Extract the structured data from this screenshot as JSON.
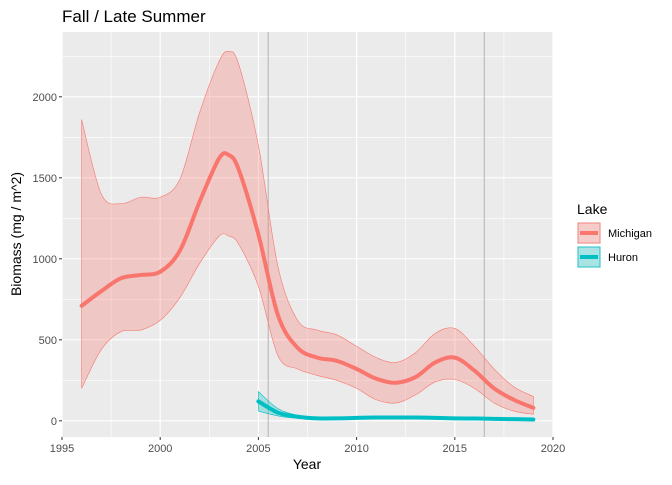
{
  "chart_data": {
    "type": "line",
    "title": "Fall / Late Summer",
    "xlabel": "Year",
    "ylabel": "Biomass (mg / m^2)",
    "xlim": [
      1995,
      2020
    ],
    "ylim": [
      -100,
      2400
    ],
    "x_ticks": [
      1995,
      2000,
      2005,
      2010,
      2015,
      2020
    ],
    "y_ticks": [
      0,
      500,
      1000,
      1500,
      2000
    ],
    "grid": true,
    "legend": {
      "title": "Lake",
      "position": "right"
    },
    "reference_lines_x": [
      2005.5,
      2016.5
    ],
    "series": [
      {
        "name": "Michigan",
        "color": "#F8766D",
        "x": [
          1996,
          1997,
          1998,
          1999,
          2000,
          2001,
          2002,
          2003,
          2003.5,
          2004,
          2005,
          2006,
          2007,
          2008,
          2009,
          2010,
          2011,
          2012,
          2013,
          2014,
          2015,
          2016,
          2017,
          2018,
          2019
        ],
        "y": [
          710,
          800,
          880,
          900,
          920,
          1050,
          1350,
          1620,
          1640,
          1550,
          1150,
          650,
          450,
          390,
          370,
          320,
          260,
          235,
          270,
          360,
          390,
          310,
          200,
          130,
          80
        ],
        "lower": [
          200,
          440,
          550,
          560,
          620,
          760,
          970,
          1140,
          1140,
          1090,
          830,
          400,
          320,
          280,
          250,
          200,
          130,
          110,
          160,
          240,
          255,
          200,
          110,
          60,
          40
        ],
        "upper": [
          1860,
          1400,
          1340,
          1380,
          1380,
          1490,
          1900,
          2220,
          2280,
          2200,
          1700,
          950,
          620,
          560,
          530,
          460,
          390,
          360,
          420,
          540,
          570,
          460,
          320,
          210,
          150
        ]
      },
      {
        "name": "Huron",
        "color": "#00BFC4",
        "x": [
          2005,
          2006,
          2007,
          2008,
          2009,
          2010,
          2011,
          2012,
          2013,
          2014,
          2015,
          2016,
          2017,
          2018,
          2019
        ],
        "y": [
          120,
          50,
          25,
          15,
          15,
          18,
          20,
          20,
          20,
          18,
          15,
          14,
          12,
          10,
          8
        ],
        "lower": [
          60,
          30,
          15,
          10,
          10,
          12,
          14,
          14,
          14,
          12,
          10,
          9,
          7,
          5,
          3
        ],
        "upper": [
          180,
          75,
          35,
          22,
          22,
          25,
          27,
          27,
          27,
          25,
          22,
          20,
          18,
          15,
          14
        ]
      }
    ]
  }
}
